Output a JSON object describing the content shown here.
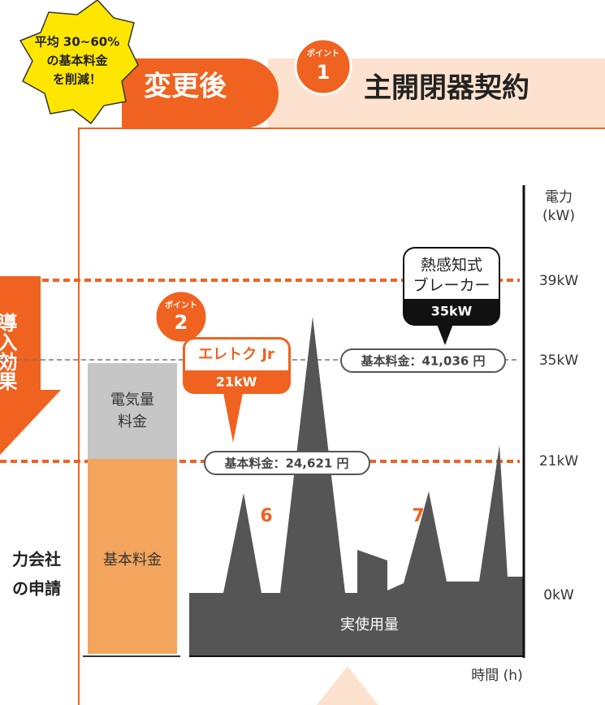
{
  "badge": {
    "lines": [
      "平均 30~60%",
      "の基本料金",
      "を削減！"
    ]
  },
  "header": {
    "after": "変更後",
    "point1": {
      "label": "ポイント",
      "number": "1"
    },
    "title": "主開閉器契約"
  },
  "left_arrow": "導入効果",
  "left_text": [
    "力会社",
    "の申請"
  ],
  "axis": {
    "unit": [
      "電力",
      "(kW)"
    ],
    "levels": [
      "39kW",
      "35kW",
      "21kW",
      "0kW"
    ],
    "time": "時間 (h)"
  },
  "breaker": {
    "lines": [
      "熱感知式",
      "ブレーカー"
    ],
    "value": "35kW"
  },
  "point2": {
    "label": "ポイント",
    "number": "2"
  },
  "eletoku": {
    "name": "エレトク Jr",
    "value": "21kW"
  },
  "fees": {
    "high": "基本料金：41,036 円",
    "low": "基本料金：24,621 円"
  },
  "bars": {
    "energy": [
      "電気量",
      "料金"
    ],
    "basic": "基本料金"
  },
  "peaks": [
    "6",
    "7"
  ],
  "usage": "実使用量"
}
